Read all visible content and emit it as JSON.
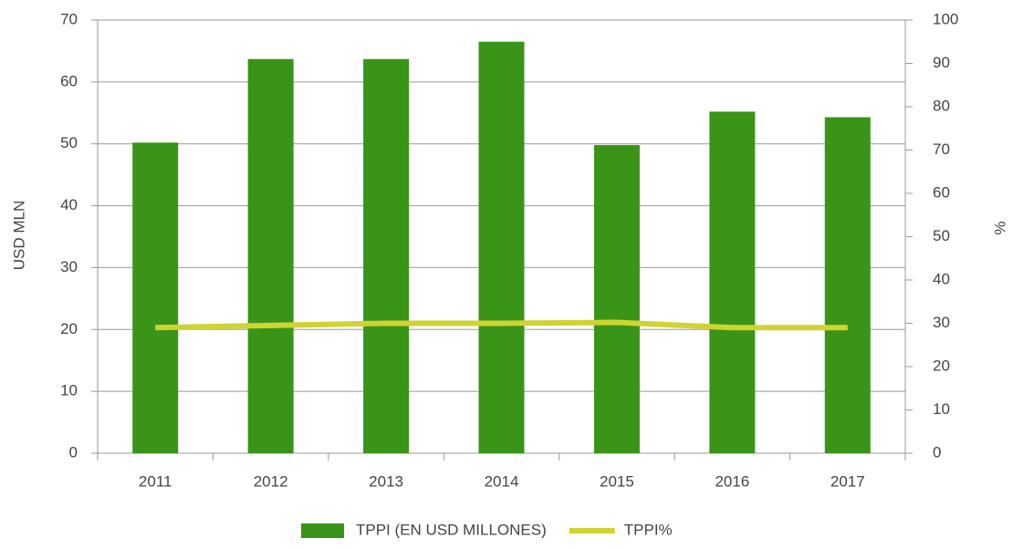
{
  "chart_data": {
    "type": "bar",
    "categories": [
      "2011",
      "2012",
      "2013",
      "2014",
      "2015",
      "2016",
      "2017"
    ],
    "series": [
      {
        "name": "TPPI (EN USD MILLONES)",
        "type": "bar",
        "color": "#3a9418",
        "values": [
          50.2,
          63.7,
          63.7,
          66.5,
          49.8,
          55.2,
          54.3
        ]
      },
      {
        "name": "TPPI%",
        "type": "line",
        "axis": "y2",
        "color": "#cfd333",
        "values": [
          29,
          29.5,
          30,
          30,
          30.2,
          29,
          29
        ]
      }
    ],
    "ylabel": "USD MLN",
    "y2label": "%",
    "ylim": [
      0,
      70
    ],
    "yticks": [
      0,
      10,
      20,
      30,
      40,
      50,
      60,
      70
    ],
    "y2lim": [
      0,
      100
    ],
    "y2ticks": [
      0,
      10,
      20,
      30,
      40,
      50,
      60,
      70,
      80,
      90,
      100
    ],
    "grid": true,
    "legend": "bottom"
  }
}
